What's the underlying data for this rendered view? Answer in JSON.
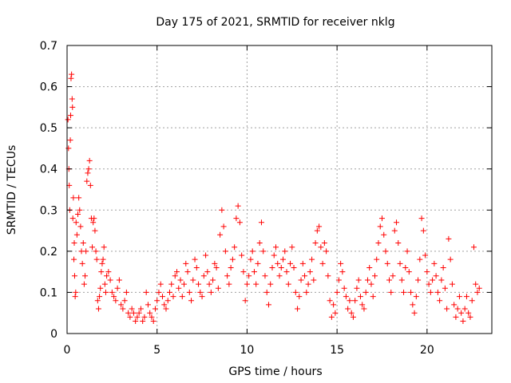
{
  "chart_data": {
    "type": "scatter",
    "title": "Day 175 of 2021, SRMTID for receiver nklg",
    "xlabel": "GPS time / hours",
    "ylabel": "SRMTID / TECUs",
    "xlim": [
      0,
      23.6
    ],
    "ylim": [
      0,
      0.7
    ],
    "x_ticks": [
      0,
      5,
      10,
      15,
      20
    ],
    "x_tick_labels": [
      "0",
      "5",
      "10",
      "15",
      "20"
    ],
    "y_ticks": [
      0,
      0.1,
      0.2,
      0.3,
      0.4,
      0.5,
      0.6,
      0.7
    ],
    "y_tick_labels": [
      "0",
      "0.1",
      "0.2",
      "0.3",
      "0.4",
      "0.5",
      "0.6",
      "0.7"
    ],
    "grid": true,
    "marker": "plus",
    "series": [
      {
        "name": "SRMTID",
        "color": "#ff0000",
        "points": [
          [
            0.05,
            0.52
          ],
          [
            0.08,
            0.45
          ],
          [
            0.1,
            0.4
          ],
          [
            0.12,
            0.36
          ],
          [
            0.15,
            0.3
          ],
          [
            0.18,
            0.47
          ],
          [
            0.2,
            0.53
          ],
          [
            0.22,
            0.62
          ],
          [
            0.25,
            0.63
          ],
          [
            0.28,
            0.57
          ],
          [
            0.3,
            0.55
          ],
          [
            0.32,
            0.28
          ],
          [
            0.35,
            0.33
          ],
          [
            0.38,
            0.18
          ],
          [
            0.4,
            0.22
          ],
          [
            0.42,
            0.14
          ],
          [
            0.45,
            0.09
          ],
          [
            0.48,
            0.1
          ],
          [
            0.5,
            0.27
          ],
          [
            0.55,
            0.24
          ],
          [
            0.6,
            0.29
          ],
          [
            0.65,
            0.33
          ],
          [
            0.7,
            0.3
          ],
          [
            0.75,
            0.26
          ],
          [
            0.8,
            0.2
          ],
          [
            0.85,
            0.17
          ],
          [
            0.9,
            0.22
          ],
          [
            0.95,
            0.12
          ],
          [
            1.0,
            0.14
          ],
          [
            1.05,
            0.2
          ],
          [
            1.1,
            0.37
          ],
          [
            1.15,
            0.39
          ],
          [
            1.2,
            0.4
          ],
          [
            1.25,
            0.42
          ],
          [
            1.3,
            0.36
          ],
          [
            1.35,
            0.28
          ],
          [
            1.4,
            0.21
          ],
          [
            1.45,
            0.27
          ],
          [
            1.5,
            0.28
          ],
          [
            1.55,
            0.25
          ],
          [
            1.6,
            0.2
          ],
          [
            1.65,
            0.18
          ],
          [
            1.7,
            0.08
          ],
          [
            1.75,
            0.06
          ],
          [
            1.8,
            0.09
          ],
          [
            1.85,
            0.11
          ],
          [
            1.9,
            0.15
          ],
          [
            1.95,
            0.17
          ],
          [
            2.0,
            0.18
          ],
          [
            2.05,
            0.21
          ],
          [
            2.1,
            0.12
          ],
          [
            2.15,
            0.1
          ],
          [
            2.2,
            0.14
          ],
          [
            2.3,
            0.15
          ],
          [
            2.4,
            0.13
          ],
          [
            2.5,
            0.1
          ],
          [
            2.6,
            0.09
          ],
          [
            2.7,
            0.08
          ],
          [
            2.8,
            0.11
          ],
          [
            2.9,
            0.13
          ],
          [
            3.0,
            0.07
          ],
          [
            3.1,
            0.06
          ],
          [
            3.2,
            0.08
          ],
          [
            3.3,
            0.1
          ],
          [
            3.4,
            0.05
          ],
          [
            3.5,
            0.04
          ],
          [
            3.6,
            0.06
          ],
          [
            3.7,
            0.05
          ],
          [
            3.8,
            0.03
          ],
          [
            3.9,
            0.04
          ],
          [
            4.0,
            0.05
          ],
          [
            4.1,
            0.06
          ],
          [
            4.2,
            0.03
          ],
          [
            4.3,
            0.04
          ],
          [
            4.4,
            0.1
          ],
          [
            4.5,
            0.07
          ],
          [
            4.6,
            0.05
          ],
          [
            4.7,
            0.04
          ],
          [
            4.8,
            0.03
          ],
          [
            4.9,
            0.06
          ],
          [
            5.0,
            0.08
          ],
          [
            5.1,
            0.1
          ],
          [
            5.2,
            0.12
          ],
          [
            5.3,
            0.09
          ],
          [
            5.4,
            0.07
          ],
          [
            5.5,
            0.06
          ],
          [
            5.6,
            0.08
          ],
          [
            5.7,
            0.1
          ],
          [
            5.8,
            0.12
          ],
          [
            5.9,
            0.09
          ],
          [
            6.0,
            0.14
          ],
          [
            6.1,
            0.15
          ],
          [
            6.2,
            0.11
          ],
          [
            6.3,
            0.13
          ],
          [
            6.4,
            0.09
          ],
          [
            6.5,
            0.12
          ],
          [
            6.6,
            0.17
          ],
          [
            6.7,
            0.15
          ],
          [
            6.8,
            0.1
          ],
          [
            6.9,
            0.08
          ],
          [
            7.0,
            0.13
          ],
          [
            7.1,
            0.18
          ],
          [
            7.2,
            0.16
          ],
          [
            7.3,
            0.12
          ],
          [
            7.4,
            0.1
          ],
          [
            7.5,
            0.09
          ],
          [
            7.6,
            0.14
          ],
          [
            7.7,
            0.19
          ],
          [
            7.8,
            0.15
          ],
          [
            7.9,
            0.12
          ],
          [
            8.0,
            0.1
          ],
          [
            8.1,
            0.13
          ],
          [
            8.2,
            0.17
          ],
          [
            8.3,
            0.16
          ],
          [
            8.4,
            0.11
          ],
          [
            8.5,
            0.24
          ],
          [
            8.6,
            0.3
          ],
          [
            8.7,
            0.26
          ],
          [
            8.8,
            0.2
          ],
          [
            8.9,
            0.14
          ],
          [
            9.0,
            0.12
          ],
          [
            9.1,
            0.16
          ],
          [
            9.2,
            0.18
          ],
          [
            9.3,
            0.21
          ],
          [
            9.4,
            0.28
          ],
          [
            9.5,
            0.31
          ],
          [
            9.6,
            0.27
          ],
          [
            9.7,
            0.19
          ],
          [
            9.8,
            0.15
          ],
          [
            9.9,
            0.08
          ],
          [
            10.0,
            0.12
          ],
          [
            10.1,
            0.14
          ],
          [
            10.2,
            0.18
          ],
          [
            10.3,
            0.2
          ],
          [
            10.4,
            0.15
          ],
          [
            10.5,
            0.12
          ],
          [
            10.6,
            0.17
          ],
          [
            10.7,
            0.22
          ],
          [
            10.8,
            0.27
          ],
          [
            10.9,
            0.2
          ],
          [
            11.0,
            0.14
          ],
          [
            11.1,
            0.1
          ],
          [
            11.2,
            0.07
          ],
          [
            11.3,
            0.12
          ],
          [
            11.4,
            0.16
          ],
          [
            11.5,
            0.19
          ],
          [
            11.6,
            0.21
          ],
          [
            11.7,
            0.17
          ],
          [
            11.8,
            0.14
          ],
          [
            11.9,
            0.16
          ],
          [
            12.0,
            0.18
          ],
          [
            12.1,
            0.2
          ],
          [
            12.2,
            0.15
          ],
          [
            12.3,
            0.12
          ],
          [
            12.4,
            0.17
          ],
          [
            12.5,
            0.21
          ],
          [
            12.6,
            0.16
          ],
          [
            12.7,
            0.1
          ],
          [
            12.8,
            0.06
          ],
          [
            12.9,
            0.09
          ],
          [
            13.0,
            0.13
          ],
          [
            13.1,
            0.17
          ],
          [
            13.2,
            0.14
          ],
          [
            13.3,
            0.1
          ],
          [
            13.4,
            0.12
          ],
          [
            13.5,
            0.15
          ],
          [
            13.6,
            0.18
          ],
          [
            13.7,
            0.13
          ],
          [
            13.8,
            0.22
          ],
          [
            13.9,
            0.25
          ],
          [
            14.0,
            0.26
          ],
          [
            14.1,
            0.21
          ],
          [
            14.2,
            0.17
          ],
          [
            14.3,
            0.22
          ],
          [
            14.4,
            0.2
          ],
          [
            14.5,
            0.14
          ],
          [
            14.6,
            0.08
          ],
          [
            14.7,
            0.04
          ],
          [
            14.8,
            0.07
          ],
          [
            14.9,
            0.05
          ],
          [
            15.0,
            0.1
          ],
          [
            15.1,
            0.13
          ],
          [
            15.2,
            0.17
          ],
          [
            15.3,
            0.15
          ],
          [
            15.4,
            0.11
          ],
          [
            15.5,
            0.09
          ],
          [
            15.6,
            0.06
          ],
          [
            15.7,
            0.08
          ],
          [
            15.8,
            0.05
          ],
          [
            15.9,
            0.04
          ],
          [
            16.0,
            0.08
          ],
          [
            16.1,
            0.11
          ],
          [
            16.2,
            0.13
          ],
          [
            16.3,
            0.09
          ],
          [
            16.4,
            0.07
          ],
          [
            16.5,
            0.06
          ],
          [
            16.6,
            0.1
          ],
          [
            16.7,
            0.13
          ],
          [
            16.8,
            0.16
          ],
          [
            16.9,
            0.12
          ],
          [
            17.0,
            0.09
          ],
          [
            17.1,
            0.14
          ],
          [
            17.2,
            0.18
          ],
          [
            17.3,
            0.22
          ],
          [
            17.4,
            0.26
          ],
          [
            17.5,
            0.28
          ],
          [
            17.6,
            0.24
          ],
          [
            17.7,
            0.2
          ],
          [
            17.8,
            0.17
          ],
          [
            17.9,
            0.13
          ],
          [
            18.0,
            0.1
          ],
          [
            18.1,
            0.14
          ],
          [
            18.2,
            0.25
          ],
          [
            18.3,
            0.27
          ],
          [
            18.4,
            0.22
          ],
          [
            18.5,
            0.17
          ],
          [
            18.6,
            0.13
          ],
          [
            18.7,
            0.1
          ],
          [
            18.8,
            0.16
          ],
          [
            18.9,
            0.2
          ],
          [
            19.0,
            0.15
          ],
          [
            19.1,
            0.1
          ],
          [
            19.2,
            0.07
          ],
          [
            19.3,
            0.05
          ],
          [
            19.4,
            0.09
          ],
          [
            19.5,
            0.13
          ],
          [
            19.6,
            0.18
          ],
          [
            19.7,
            0.28
          ],
          [
            19.8,
            0.25
          ],
          [
            19.9,
            0.19
          ],
          [
            20.0,
            0.15
          ],
          [
            20.1,
            0.12
          ],
          [
            20.2,
            0.1
          ],
          [
            20.3,
            0.13
          ],
          [
            20.4,
            0.17
          ],
          [
            20.5,
            0.14
          ],
          [
            20.6,
            0.1
          ],
          [
            20.7,
            0.08
          ],
          [
            20.8,
            0.13
          ],
          [
            20.9,
            0.16
          ],
          [
            21.0,
            0.11
          ],
          [
            21.1,
            0.06
          ],
          [
            21.2,
            0.23
          ],
          [
            21.3,
            0.18
          ],
          [
            21.4,
            0.12
          ],
          [
            21.5,
            0.07
          ],
          [
            21.6,
            0.04
          ],
          [
            21.7,
            0.06
          ],
          [
            21.8,
            0.09
          ],
          [
            21.9,
            0.05
          ],
          [
            22.0,
            0.03
          ],
          [
            22.1,
            0.06
          ],
          [
            22.2,
            0.09
          ],
          [
            22.3,
            0.05
          ],
          [
            22.4,
            0.04
          ],
          [
            22.5,
            0.08
          ],
          [
            22.6,
            0.21
          ],
          [
            22.7,
            0.12
          ],
          [
            22.8,
            0.1
          ],
          [
            22.9,
            0.11
          ]
        ]
      }
    ]
  }
}
